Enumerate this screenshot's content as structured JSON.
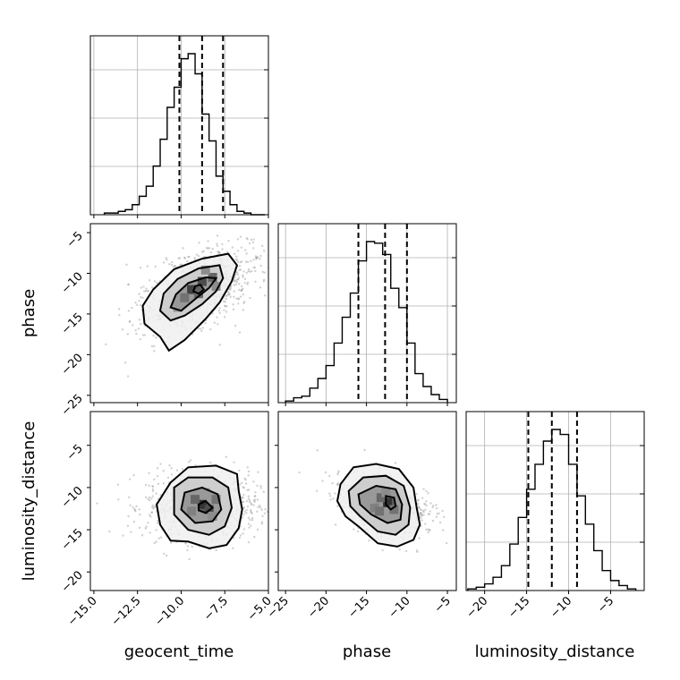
{
  "chart_data": {
    "type": "corner",
    "parameters": [
      "geocent_time",
      "phase",
      "luminosity_distance"
    ],
    "axis_labels": {
      "geocent_time": "geocent_time",
      "phase": "phase",
      "luminosity_distance": "luminosity_distance"
    },
    "ranges": {
      "geocent_time": [
        -15.2,
        -5.0
      ],
      "phase": [
        -25.9,
        -3.9
      ],
      "luminosity_distance": [
        -22.2,
        -1.0
      ]
    },
    "ticks": {
      "geocent_time": [
        -15.0,
        -12.5,
        -10.0,
        -7.5,
        -5.0
      ],
      "phase": [
        -25,
        -20,
        -15,
        -10,
        -5
      ],
      "luminosity_distance": [
        -20,
        -15,
        -10,
        -5
      ]
    },
    "tick_labels": {
      "geocent_time": [
        "−15.0",
        "−12.5",
        "−10.0",
        "−7.5",
        "−5.0"
      ],
      "phase": [
        "−25",
        "−20",
        "−15",
        "−10",
        "−5"
      ],
      "luminosity_distance": [
        "−20",
        "−15",
        "−10",
        "−5"
      ]
    },
    "quantiles": {
      "geocent_time": [
        -10.1,
        -8.8,
        -7.6
      ],
      "phase": [
        -16.0,
        -12.7,
        -10.0
      ],
      "luminosity_distance": [
        -14.8,
        -12.0,
        -9.0
      ]
    },
    "histograms": {
      "geocent_time": {
        "bin_edges": [
          -14.4,
          -14.0,
          -13.6,
          -13.2,
          -12.8,
          -12.4,
          -12.0,
          -11.6,
          -11.2,
          -10.8,
          -10.4,
          -10.0,
          -9.6,
          -9.2,
          -8.8,
          -8.4,
          -8.0,
          -7.6,
          -7.2,
          -6.8,
          -6.4,
          -6.0,
          -5.6,
          -5.2
        ],
        "counts": [
          1,
          1,
          2,
          3,
          6,
          11,
          17,
          29,
          45,
          64,
          76,
          93,
          96,
          84,
          60,
          44,
          23,
          14,
          6,
          2,
          1,
          0,
          0
        ]
      },
      "phase": {
        "bin_edges": [
          -25.0,
          -24.0,
          -23.0,
          -22.0,
          -21.0,
          -20.0,
          -19.0,
          -18.0,
          -17.0,
          -16.0,
          -15.0,
          -14.0,
          -13.0,
          -12.0,
          -11.0,
          -10.0,
          -9.0,
          -8.0,
          -7.0,
          -6.0,
          -5.0
        ],
        "counts": [
          1,
          3,
          4,
          9,
          15,
          23,
          37,
          53,
          68,
          88,
          100,
          99,
          92,
          71,
          59,
          37,
          18,
          10,
          5,
          2
        ]
      },
      "luminosity_distance": {
        "bin_edges": [
          -22.0,
          -21.0,
          -20.0,
          -19.0,
          -18.0,
          -17.0,
          -16.0,
          -15.0,
          -14.0,
          -13.0,
          -12.0,
          -11.0,
          -10.0,
          -9.0,
          -8.0,
          -7.0,
          -6.0,
          -5.0,
          -4.0,
          -3.0,
          -2.0
        ],
        "counts": [
          1,
          2,
          4,
          8,
          15,
          28,
          44,
          61,
          76,
          90,
          97,
          94,
          76,
          57,
          40,
          24,
          12,
          6,
          3,
          1
        ]
      }
    },
    "contours": [
      {
        "x": "geocent_time",
        "y": "phase",
        "levels": [
          [
            [
              -11.6,
              -12.0
            ],
            [
              -10.4,
              -9.5
            ],
            [
              -8.8,
              -8.2
            ],
            [
              -7.3,
              -7.6
            ],
            [
              -6.8,
              -9.0
            ],
            [
              -7.1,
              -11.0
            ],
            [
              -7.8,
              -13.6
            ],
            [
              -8.6,
              -15.6
            ],
            [
              -9.8,
              -18.2
            ],
            [
              -10.7,
              -19.5
            ],
            [
              -11.2,
              -17.8
            ],
            [
              -12.1,
              -16.2
            ],
            [
              -12.2,
              -14.0
            ]
          ],
          [
            [
              -11.0,
              -12.5
            ],
            [
              -10.2,
              -10.7
            ],
            [
              -9.0,
              -9.4
            ],
            [
              -7.8,
              -9.0
            ],
            [
              -7.6,
              -10.6
            ],
            [
              -8.0,
              -12.2
            ],
            [
              -8.8,
              -13.8
            ],
            [
              -9.8,
              -15.2
            ],
            [
              -10.6,
              -15.8
            ],
            [
              -11.2,
              -14.6
            ]
          ],
          [
            [
              -10.3,
              -12.6
            ],
            [
              -9.6,
              -11.2
            ],
            [
              -8.6,
              -10.5
            ],
            [
              -8.0,
              -10.6
            ],
            [
              -8.4,
              -11.8
            ],
            [
              -9.1,
              -13.0
            ],
            [
              -10.0,
              -14.6
            ],
            [
              -10.6,
              -14.2
            ]
          ],
          [
            [
              -9.2,
              -11.6
            ],
            [
              -8.9,
              -11.4
            ],
            [
              -8.7,
              -12.0
            ],
            [
              -9.0,
              -12.5
            ],
            [
              -9.3,
              -12.2
            ]
          ]
        ],
        "bins": [
          {
            "x": -9.4,
            "y": -12.0,
            "shade": 0.75
          },
          {
            "x": -8.8,
            "y": -11.0,
            "shade": 0.7
          },
          {
            "x": -8.2,
            "y": -10.5,
            "shade": 0.6
          },
          {
            "x": -9.8,
            "y": -13.0,
            "shade": 0.55
          },
          {
            "x": -9.0,
            "y": -12.5,
            "shade": 0.6
          },
          {
            "x": -8.6,
            "y": -9.6,
            "shade": 0.45
          },
          {
            "x": -10.2,
            "y": -14.2,
            "shade": 0.4
          },
          {
            "x": -8.0,
            "y": -11.6,
            "shade": 0.45
          }
        ],
        "points": [
          {
            "x": -9.0,
            "y": -12.0,
            "rx": 2.9,
            "ry": 5.3,
            "tilt": 0.55,
            "count": 900
          },
          {
            "x": -8.2,
            "y": -10.6,
            "rx": 0.4,
            "ry": 0.4,
            "tilt": 0,
            "count": 0
          }
        ]
      },
      {
        "x": "geocent_time",
        "y": "luminosity_distance",
        "levels": [
          [
            [
              -10.6,
              -9.4
            ],
            [
              -9.6,
              -7.6
            ],
            [
              -8.0,
              -7.4
            ],
            [
              -6.8,
              -8.4
            ],
            [
              -6.7,
              -10.4
            ],
            [
              -6.5,
              -12.6
            ],
            [
              -6.7,
              -14.8
            ],
            [
              -7.4,
              -16.8
            ],
            [
              -8.4,
              -17.2
            ],
            [
              -9.6,
              -16.4
            ],
            [
              -10.6,
              -16.3
            ],
            [
              -11.2,
              -14.4
            ],
            [
              -11.4,
              -12.0
            ]
          ],
          [
            [
              -10.4,
              -10.0
            ],
            [
              -9.6,
              -8.8
            ],
            [
              -8.2,
              -8.8
            ],
            [
              -7.3,
              -10.0
            ],
            [
              -7.1,
              -12.4
            ],
            [
              -7.5,
              -14.6
            ],
            [
              -8.4,
              -15.6
            ],
            [
              -9.6,
              -15.0
            ],
            [
              -10.4,
              -13.2
            ]
          ],
          [
            [
              -9.8,
              -10.6
            ],
            [
              -8.8,
              -10.0
            ],
            [
              -7.9,
              -10.8
            ],
            [
              -7.7,
              -12.6
            ],
            [
              -8.2,
              -14.0
            ],
            [
              -9.2,
              -14.2
            ],
            [
              -10.0,
              -12.6
            ]
          ],
          [
            [
              -9.0,
              -12.0
            ],
            [
              -8.6,
              -11.6
            ],
            [
              -8.2,
              -12.4
            ],
            [
              -8.6,
              -13.0
            ],
            [
              -9.0,
              -12.7
            ]
          ]
        ],
        "bins": [
          {
            "x": -8.8,
            "y": -12.0,
            "shade": 0.8
          },
          {
            "x": -8.4,
            "y": -12.6,
            "shade": 0.7
          },
          {
            "x": -9.2,
            "y": -11.4,
            "shade": 0.6
          },
          {
            "x": -8.0,
            "y": -11.4,
            "shade": 0.55
          },
          {
            "x": -9.4,
            "y": -12.8,
            "shade": 0.5
          },
          {
            "x": -8.6,
            "y": -10.6,
            "shade": 0.4
          },
          {
            "x": -8.2,
            "y": -13.4,
            "shade": 0.45
          }
        ],
        "points": [
          {
            "x": -8.8,
            "y": -12.2,
            "rx": 3.2,
            "ry": 4.0,
            "tilt": 0,
            "count": 900
          }
        ]
      },
      {
        "x": "phase",
        "y": "luminosity_distance",
        "levels": [
          [
            [
              -18.2,
              -9.6
            ],
            [
              -16.6,
              -7.6
            ],
            [
              -13.8,
              -7.2
            ],
            [
              -11.0,
              -7.8
            ],
            [
              -9.2,
              -10.0
            ],
            [
              -8.8,
              -12.4
            ],
            [
              -8.4,
              -14.4
            ],
            [
              -9.2,
              -16.2
            ],
            [
              -11.2,
              -17.0
            ],
            [
              -13.6,
              -16.6
            ],
            [
              -16.0,
              -14.6
            ],
            [
              -17.6,
              -13.4
            ],
            [
              -18.6,
              -11.6
            ]
          ],
          [
            [
              -17.2,
              -10.4
            ],
            [
              -15.4,
              -8.8
            ],
            [
              -12.6,
              -8.6
            ],
            [
              -10.4,
              -9.8
            ],
            [
              -9.6,
              -12.4
            ],
            [
              -9.8,
              -14.4
            ],
            [
              -11.4,
              -15.6
            ],
            [
              -13.6,
              -15.2
            ],
            [
              -15.8,
              -13.4
            ],
            [
              -17.0,
              -12.2
            ]
          ],
          [
            [
              -16.0,
              -10.8
            ],
            [
              -13.8,
              -9.8
            ],
            [
              -11.4,
              -10.2
            ],
            [
              -10.6,
              -12.0
            ],
            [
              -10.8,
              -13.8
            ],
            [
              -12.4,
              -14.2
            ],
            [
              -14.4,
              -13.2
            ],
            [
              -15.8,
              -12.0
            ]
          ],
          [
            [
              -12.6,
              -11.0
            ],
            [
              -11.6,
              -11.2
            ],
            [
              -11.4,
              -12.2
            ],
            [
              -12.0,
              -12.6
            ],
            [
              -12.6,
              -12.0
            ]
          ]
        ],
        "bins": [
          {
            "x": -12.4,
            "y": -11.8,
            "shade": 0.8
          },
          {
            "x": -13.2,
            "y": -11.2,
            "shade": 0.6
          },
          {
            "x": -11.6,
            "y": -12.6,
            "shade": 0.55
          },
          {
            "x": -14.0,
            "y": -12.4,
            "shade": 0.5
          },
          {
            "x": -13.4,
            "y": -12.8,
            "shade": 0.55
          },
          {
            "x": -12.6,
            "y": -10.6,
            "shade": 0.45
          },
          {
            "x": -14.6,
            "y": -11.4,
            "shade": 0.4
          }
        ],
        "points": [
          {
            "x": -13.0,
            "y": -12.0,
            "rx": 5.0,
            "ry": 3.6,
            "tilt": -0.35,
            "count": 900
          }
        ]
      }
    ]
  }
}
